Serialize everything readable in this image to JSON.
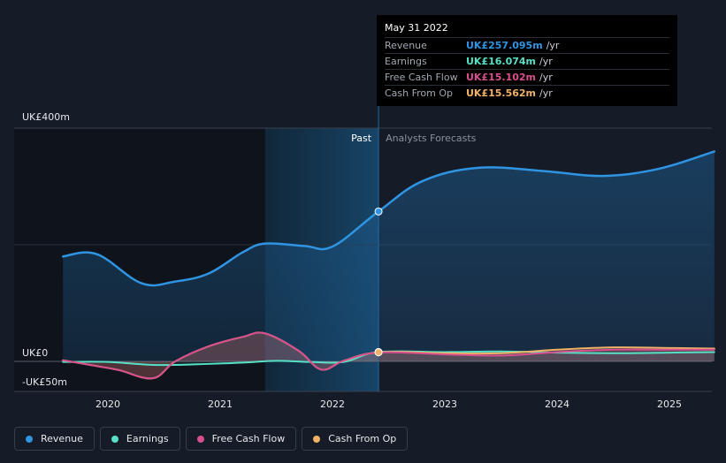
{
  "tooltip": {
    "date": "May 31 2022",
    "rows": [
      {
        "label": "Revenue",
        "value": "UK£257.095m",
        "unit": "/yr",
        "color": "#2f94e2"
      },
      {
        "label": "Earnings",
        "value": "UK£16.074m",
        "unit": "/yr",
        "color": "#57e0c5"
      },
      {
        "label": "Free Cash Flow",
        "value": "UK£15.102m",
        "unit": "/yr",
        "color": "#d84f8e"
      },
      {
        "label": "Cash From Op",
        "value": "UK£15.562m",
        "unit": "/yr",
        "color": "#f1b267"
      }
    ]
  },
  "regions": {
    "past": "Past",
    "forecast": "Analysts Forecasts"
  },
  "legend": [
    {
      "label": "Revenue",
      "color": "#2f94e2"
    },
    {
      "label": "Earnings",
      "color": "#57e0c5"
    },
    {
      "label": "Free Cash Flow",
      "color": "#d84f8e"
    },
    {
      "label": "Cash From Op",
      "color": "#f1b267"
    }
  ],
  "chart_data": {
    "type": "line",
    "y_tick_labels": [
      "UK£400m",
      "UK£0",
      "-UK£50m"
    ],
    "x_tick_labels": [
      "2020",
      "2021",
      "2022",
      "2023",
      "2024",
      "2025"
    ],
    "ylim": [
      -50,
      400
    ],
    "xlim": [
      2019.6,
      2025.4
    ],
    "today": 2022.41,
    "highlight_start": 2021.4,
    "grid": true,
    "legend_position": "bottom-left",
    "series": [
      {
        "name": "Revenue",
        "color": "#2f94e2",
        "x": [
          2019.6,
          2019.9,
          2020.3,
          2020.6,
          2020.9,
          2021.2,
          2021.4,
          2021.75,
          2022.0,
          2022.41,
          2022.8,
          2023.3,
          2023.9,
          2024.4,
          2024.9,
          2025.4
        ],
        "y": [
          180,
          184,
          134,
          137,
          151,
          187,
          202,
          198,
          197,
          257.095,
          309,
          332,
          326,
          318,
          330,
          360
        ]
      },
      {
        "name": "Earnings",
        "color": "#57e0c5",
        "x": [
          2019.6,
          2020.0,
          2020.4,
          2020.8,
          2021.2,
          2021.5,
          2021.8,
          2022.1,
          2022.41,
          2023.0,
          2023.5,
          2024.0,
          2024.5,
          2025.0,
          2025.4
        ],
        "y": [
          -1,
          -1,
          -6,
          -5,
          -2,
          1,
          -1,
          -1,
          16.074,
          16,
          17,
          15,
          14,
          15,
          16
        ]
      },
      {
        "name": "Free Cash Flow",
        "color": "#d84f8e",
        "x": [
          2019.6,
          2019.9,
          2020.1,
          2020.4,
          2020.6,
          2020.9,
          2021.2,
          2021.4,
          2021.7,
          2021.9,
          2022.1,
          2022.41,
          2023.0,
          2023.5,
          2024.0,
          2024.5,
          2025.0,
          2025.4
        ],
        "y": [
          2,
          -8,
          -15,
          -29,
          0,
          26,
          42,
          48,
          18,
          -14,
          1,
          15.102,
          12,
          10,
          16,
          20,
          20,
          20
        ]
      },
      {
        "name": "Cash From Op",
        "color": "#f1b267",
        "x": [
          2019.6,
          2019.9,
          2020.1,
          2020.4,
          2020.6,
          2020.9,
          2021.2,
          2021.4,
          2021.7,
          2021.9,
          2022.1,
          2022.41,
          2023.0,
          2023.5,
          2024.0,
          2024.5,
          2025.0,
          2025.4
        ],
        "y": [
          2,
          -8,
          -15,
          -29,
          0,
          26,
          42,
          48,
          18,
          -14,
          1,
          15.562,
          14,
          14,
          20,
          24,
          23,
          22
        ]
      }
    ]
  }
}
